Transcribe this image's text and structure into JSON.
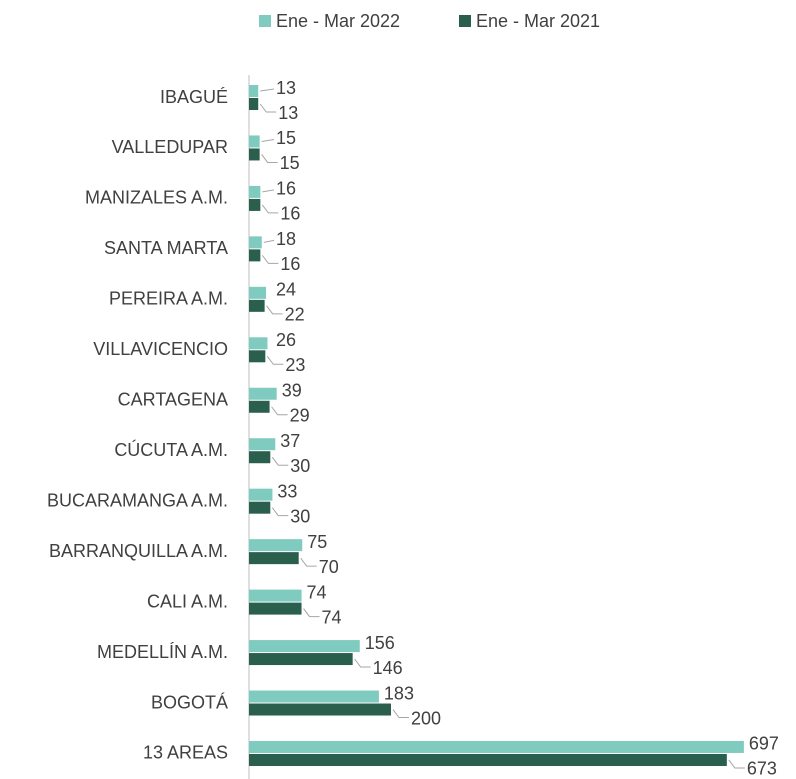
{
  "chart_data": {
    "type": "hbar",
    "categories": [
      "IBAGUÉ",
      "VALLEDUPAR",
      "MANIZALES A.M.",
      "SANTA MARTA",
      "PEREIRA A.M.",
      "VILLAVICENCIO",
      "CARTAGENA",
      "CÚCUTA A.M.",
      "BUCARAMANGA A.M.",
      "BARRANQUILLA A.M.",
      "CALI  A.M.",
      "MEDELLÍN A.M.",
      "BOGOTÁ",
      "13 AREAS"
    ],
    "series": [
      {
        "name": "Ene - Mar 2022",
        "color": "#80cbbf",
        "values": [
          13,
          15,
          16,
          18,
          24,
          26,
          39,
          37,
          33,
          75,
          74,
          156,
          183,
          697
        ]
      },
      {
        "name": "Ene - Mar 2021",
        "color": "#2a5e4d",
        "values": [
          13,
          15,
          16,
          16,
          22,
          23,
          29,
          30,
          30,
          70,
          74,
          146,
          200,
          673
        ]
      }
    ],
    "xlim": [
      0,
      700
    ],
    "legend": "top"
  }
}
